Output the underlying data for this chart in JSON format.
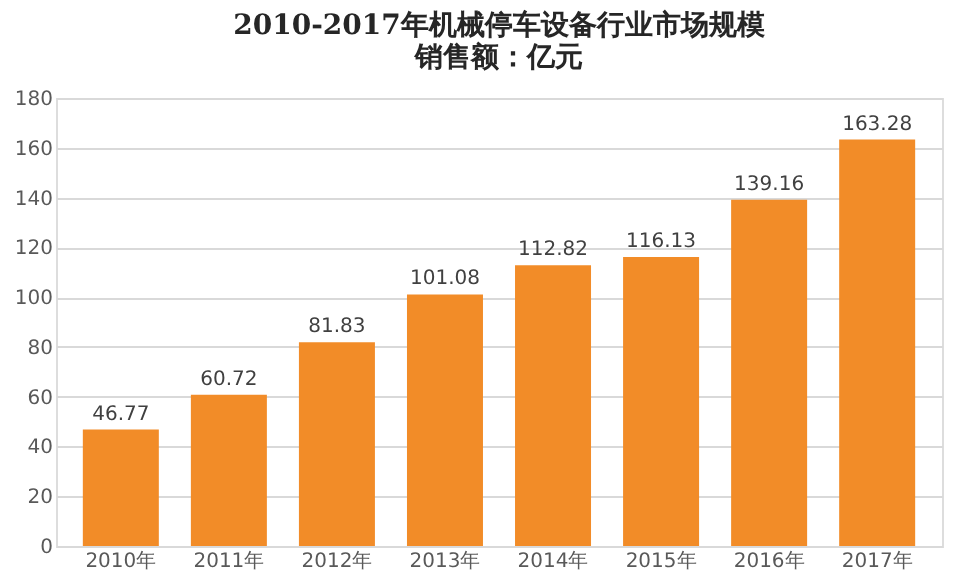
{
  "chart_data": {
    "type": "bar",
    "title": "2010-2017年机械停车设备行业市场规模",
    "subtitle": "销售额：亿元",
    "categories": [
      "2010年",
      "2011年",
      "2012年",
      "2013年",
      "2014年",
      "2015年",
      "2016年",
      "2017年"
    ],
    "values": [
      46.77,
      60.72,
      81.83,
      101.08,
      112.82,
      116.13,
      139.16,
      163.28
    ],
    "color": "#f28c28",
    "ylim": [
      0,
      180
    ],
    "yticks": [
      0,
      20,
      40,
      60,
      80,
      100,
      120,
      140,
      160,
      180
    ],
    "grid": "y",
    "data_labels": true
  }
}
